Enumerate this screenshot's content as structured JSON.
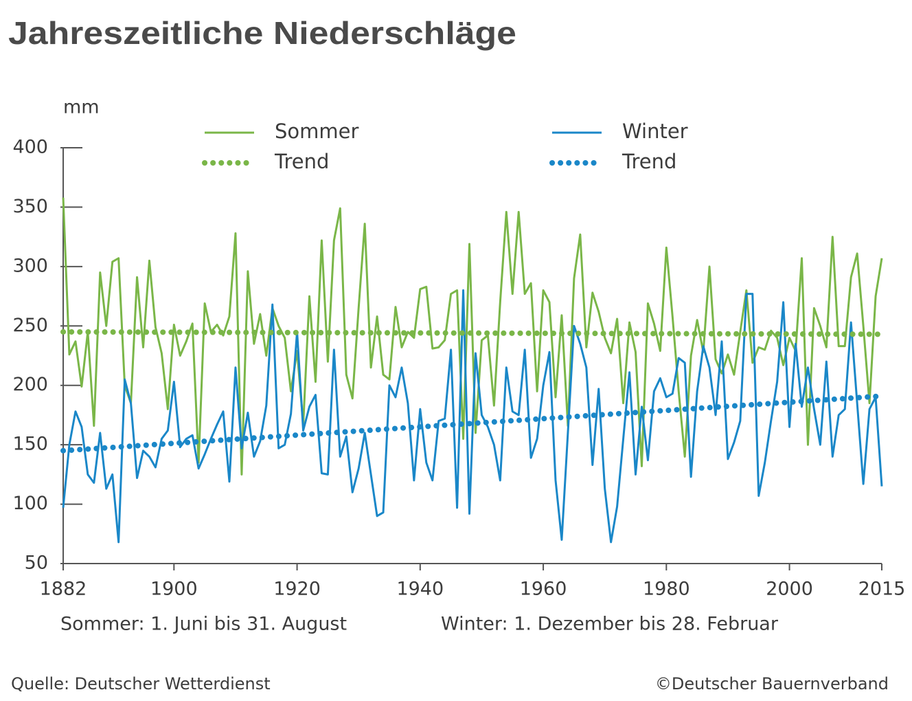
{
  "chart_data": {
    "type": "line",
    "title": "Jahreszeitliche Niederschläge",
    "ylabel": "mm",
    "notes": [
      "Sommer: 1. Juni bis 31. August",
      "Winter: 1. Dezember bis 28. Februar"
    ],
    "source": "Quelle: Deutscher Wetterdienst",
    "copyright": "©Deutscher Bauernverband",
    "xlim": [
      1882,
      2015
    ],
    "xticks": [
      1882,
      1900,
      1920,
      1940,
      1960,
      1980,
      2000,
      2015
    ],
    "ylim": [
      50,
      400
    ],
    "yticks": [
      50,
      100,
      150,
      200,
      250,
      300,
      350,
      400
    ],
    "grid": false,
    "x": [
      1882,
      1883,
      1884,
      1885,
      1886,
      1887,
      1888,
      1889,
      1890,
      1891,
      1892,
      1893,
      1894,
      1895,
      1896,
      1897,
      1898,
      1899,
      1900,
      1901,
      1902,
      1903,
      1904,
      1905,
      1906,
      1907,
      1908,
      1909,
      1910,
      1911,
      1912,
      1913,
      1914,
      1915,
      1916,
      1917,
      1918,
      1919,
      1920,
      1921,
      1922,
      1923,
      1924,
      1925,
      1926,
      1927,
      1928,
      1929,
      1930,
      1931,
      1932,
      1933,
      1934,
      1935,
      1936,
      1937,
      1938,
      1939,
      1940,
      1941,
      1942,
      1943,
      1944,
      1945,
      1946,
      1947,
      1948,
      1949,
      1950,
      1951,
      1952,
      1953,
      1954,
      1955,
      1956,
      1957,
      1958,
      1959,
      1960,
      1961,
      1962,
      1963,
      1964,
      1965,
      1966,
      1967,
      1968,
      1969,
      1970,
      1971,
      1972,
      1973,
      1974,
      1975,
      1976,
      1977,
      1978,
      1979,
      1980,
      1981,
      1982,
      1983,
      1984,
      1985,
      1986,
      1987,
      1988,
      1989,
      1990,
      1991,
      1992,
      1993,
      1994,
      1995,
      1996,
      1997,
      1998,
      1999,
      2000,
      2001,
      2002,
      2003,
      2004,
      2005,
      2006,
      2007,
      2008,
      2009,
      2010,
      2011,
      2012,
      2013,
      2014,
      2015
    ],
    "series": [
      {
        "name": "Sommer",
        "color": "#7ab648",
        "dashed": false,
        "values": [
          358,
          226,
          237,
          199,
          245,
          166,
          295,
          250,
          304,
          307,
          200,
          185,
          291,
          232,
          305,
          249,
          227,
          180,
          251,
          225,
          237,
          252,
          135,
          269,
          245,
          251,
          242,
          258,
          328,
          125,
          296,
          235,
          260,
          225,
          265,
          250,
          240,
          195,
          229,
          167,
          275,
          203,
          322,
          220,
          322,
          349,
          209,
          189,
          265,
          336,
          215,
          258,
          209,
          205,
          266,
          232,
          245,
          240,
          281,
          283,
          231,
          232,
          238,
          277,
          280,
          155,
          319,
          160,
          238,
          242,
          183,
          270,
          346,
          277,
          346,
          277,
          286,
          195,
          280,
          270,
          190,
          259,
          166,
          290,
          327,
          232,
          278,
          262,
          240,
          227,
          256,
          185,
          253,
          228,
          132,
          269,
          252,
          229,
          316,
          258,
          195,
          140,
          225,
          255,
          228,
          300,
          222,
          210,
          226,
          209,
          245,
          280,
          219,
          232,
          230,
          246,
          240,
          217,
          240,
          229,
          307,
          150,
          265,
          250,
          232,
          325,
          233,
          233,
          291,
          311,
          250,
          185,
          275,
          307
        ]
      },
      {
        "name": "Winter",
        "color": "#1a87c8",
        "dashed": false,
        "values": [
          97,
          150,
          178,
          165,
          125,
          118,
          160,
          113,
          125,
          68,
          205,
          185,
          122,
          145,
          140,
          131,
          155,
          162,
          203,
          148,
          155,
          158,
          130,
          142,
          155,
          167,
          178,
          119,
          215,
          147,
          177,
          140,
          153,
          183,
          268,
          147,
          150,
          176,
          245,
          162,
          182,
          192,
          126,
          125,
          230,
          140,
          157,
          110,
          130,
          160,
          125,
          90,
          93,
          200,
          190,
          215,
          185,
          120,
          180,
          135,
          120,
          170,
          172,
          230,
          97,
          280,
          92,
          227,
          175,
          165,
          150,
          120,
          215,
          178,
          175,
          230,
          139,
          155,
          200,
          228,
          120,
          70,
          160,
          250,
          235,
          215,
          133,
          197,
          113,
          68,
          98,
          155,
          211,
          125,
          182,
          137,
          195,
          206,
          190,
          193,
          223,
          219,
          123,
          195,
          233,
          215,
          175,
          237,
          138,
          152,
          170,
          277,
          277,
          107,
          135,
          170,
          203,
          270,
          165,
          235,
          182,
          215,
          180,
          150,
          220,
          140,
          175,
          180,
          253,
          185,
          117,
          180,
          190,
          115
        ]
      },
      {
        "name": "Trend",
        "color": "#7ab648",
        "dashed": true,
        "x": [
          1882,
          2015
        ],
        "values": [
          245,
          243
        ]
      },
      {
        "name": "Trend",
        "color": "#1a87c8",
        "dashed": true,
        "x": [
          1882,
          2015
        ],
        "values": [
          145,
          191
        ]
      }
    ]
  }
}
